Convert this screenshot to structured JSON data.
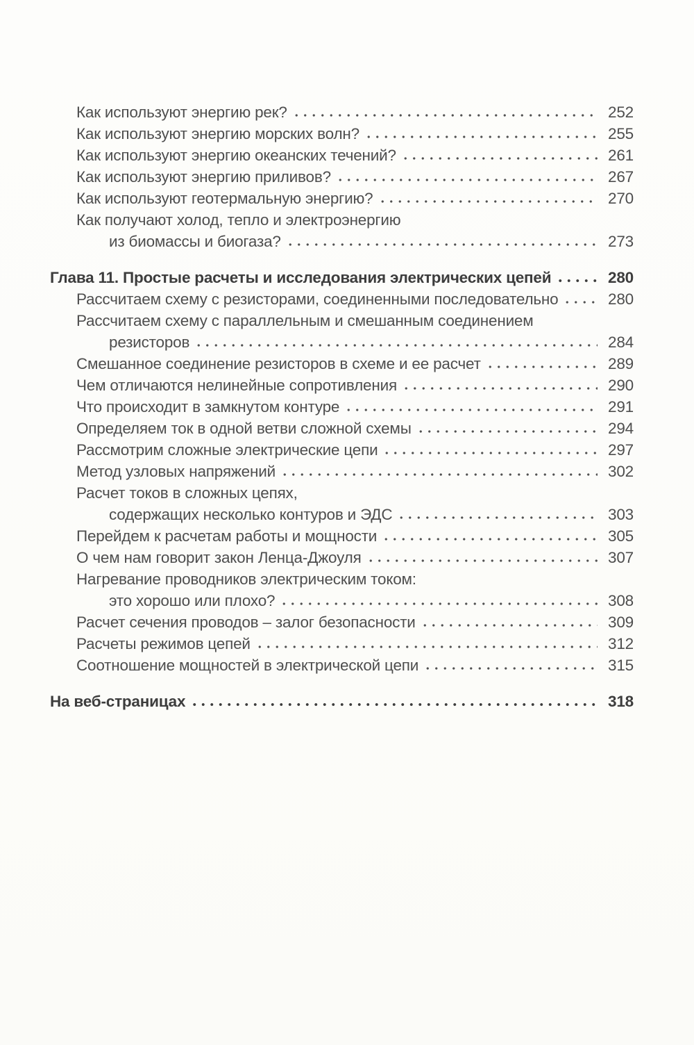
{
  "colors": {
    "background": "#fcfcf9",
    "text": "#4e4e4e",
    "heading_text": "#3d3d3d"
  },
  "toc": {
    "sections": [
      {
        "name": "energy-entries",
        "rows": [
          {
            "text": "Как используют энергию рек?",
            "page": "252"
          },
          {
            "text": "Как используют энергию морских волн?",
            "page": "255"
          },
          {
            "text": "Как используют энергию океанских течений?",
            "page": "261"
          },
          {
            "text": "Как используют энергию приливов?",
            "page": "267"
          },
          {
            "text": "Как используют геотермальную энергию?",
            "page": "270"
          },
          {
            "text": "Как получают холод, тепло и электроэнергию"
          },
          {
            "text": "из биомассы и биогаза?",
            "page": "273",
            "indent": true
          }
        ]
      },
      {
        "name": "chapter-11",
        "rows": [
          {
            "text": "Глава 11. Простые расчеты и исследования электрических цепей",
            "page": "280",
            "style": "chapter"
          },
          {
            "text": "Рассчитаем схему с резисторами, соединенными последовательно",
            "page": "280"
          },
          {
            "text": "Рассчитаем схему с параллельным и смешанным соединением"
          },
          {
            "text": "резисторов",
            "page": "284",
            "indent": true
          },
          {
            "text": "Смешанное соединение резисторов в схеме и ее расчет",
            "page": "289"
          },
          {
            "text": "Чем отличаются нелинейные сопротивления",
            "page": "290"
          },
          {
            "text": "Что происходит в замкнутом контуре",
            "page": "291"
          },
          {
            "text": "Определяем ток в одной ветви сложной схемы",
            "page": "294"
          },
          {
            "text": "Рассмотрим сложные электрические цепи",
            "page": "297"
          },
          {
            "text": "Метод узловых напряжений",
            "page": "302"
          },
          {
            "text": "Расчет токов в сложных цепях,"
          },
          {
            "text": "содержащих несколько контуров и ЭДС",
            "page": "303",
            "indent": true
          },
          {
            "text": "Перейдем к расчетам работы и мощности",
            "page": "305"
          },
          {
            "text": "О чем нам говорит закон Ленца-Джоуля",
            "page": "307"
          },
          {
            "text": "Нагревание проводников электрическим током:"
          },
          {
            "text": "это хорошо или плохо?",
            "page": "308",
            "indent": true
          },
          {
            "text": "Расчет сечения проводов – залог безопасности",
            "page": "309"
          },
          {
            "text": "Расчеты режимов цепей",
            "page": "312"
          },
          {
            "text": "Соотношение мощностей в электрической цепи",
            "page": "315"
          }
        ]
      },
      {
        "name": "web-pages",
        "rows": [
          {
            "text": "На веб-страницах",
            "page": "318",
            "style": "chapter"
          }
        ]
      }
    ]
  }
}
